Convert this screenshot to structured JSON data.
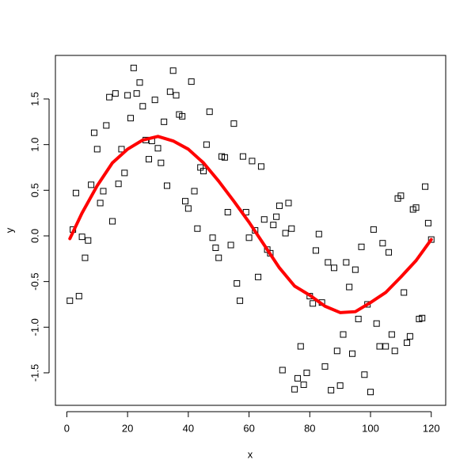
{
  "chart_data": {
    "type": "scatter",
    "xlabel": "x",
    "ylabel": "y",
    "xlim": [
      -3.76,
      124.76
    ],
    "ylim": [
      -1.856,
      1.977
    ],
    "xticks": [
      0,
      20,
      40,
      60,
      80,
      100,
      120
    ],
    "yticks": [
      -1.5,
      {
        "value": -1,
        "label": "-1.0"
      },
      -0.5,
      {
        "value": 0,
        "label": "0.0"
      },
      0.5,
      {
        "value": 1,
        "label": "1.0"
      },
      1.5
    ],
    "grid": false,
    "series": [
      {
        "type": "scatter",
        "color": "#000000",
        "x": [
          1,
          2,
          3,
          4,
          5,
          6,
          7,
          8,
          9,
          10,
          11,
          12,
          13,
          14,
          15,
          16,
          17,
          18,
          19,
          20,
          21,
          22,
          23,
          24,
          25,
          26,
          27,
          28,
          29,
          30,
          31,
          32,
          33,
          34,
          35,
          36,
          37,
          38,
          39,
          40,
          41,
          42,
          43,
          44,
          45,
          46,
          47,
          48,
          49,
          50,
          51,
          52,
          53,
          54,
          55,
          56,
          57,
          58,
          59,
          60,
          61,
          62,
          63,
          64,
          65,
          66,
          67,
          68,
          69,
          70,
          71,
          72,
          73,
          74,
          75,
          76,
          77,
          78,
          79,
          80,
          81,
          82,
          83,
          84,
          85,
          86,
          87,
          88,
          89,
          90,
          91,
          92,
          93,
          94,
          95,
          96,
          97,
          98,
          99,
          100,
          101,
          102,
          103,
          104,
          105,
          106,
          107,
          108,
          109,
          110,
          111,
          112,
          113,
          114,
          115,
          116,
          117,
          118,
          119,
          120
        ],
        "values": [
          -0.71,
          0.07,
          0.47,
          -0.66,
          -0.01,
          -0.24,
          -0.05,
          0.56,
          1.13,
          0.95,
          0.36,
          0.49,
          1.21,
          1.52,
          0.16,
          1.56,
          0.57,
          0.95,
          0.69,
          1.54,
          1.29,
          1.84,
          1.56,
          1.68,
          1.42,
          1.05,
          0.84,
          1.04,
          1.49,
          0.96,
          0.8,
          1.25,
          0.55,
          1.58,
          1.81,
          1.54,
          1.33,
          1.31,
          0.38,
          0.3,
          1.69,
          0.49,
          0.08,
          0.75,
          0.71,
          1.0,
          1.36,
          -0.02,
          -0.13,
          -0.24,
          0.87,
          0.86,
          0.26,
          -0.1,
          1.23,
          -0.52,
          -0.71,
          0.87,
          0.26,
          -0.02,
          0.82,
          0.06,
          -0.45,
          0.76,
          0.18,
          -0.15,
          -0.19,
          0.12,
          0.21,
          0.33,
          -1.47,
          0.03,
          0.36,
          0.08,
          -1.68,
          -1.56,
          -1.21,
          -1.63,
          -1.5,
          -0.66,
          -0.74,
          -0.16,
          0.02,
          -0.73,
          -1.43,
          -0.29,
          -1.69,
          -0.35,
          -1.26,
          -1.64,
          -1.08,
          -0.29,
          -0.56,
          -1.29,
          -0.37,
          -0.91,
          -0.12,
          -1.52,
          -0.75,
          -1.71,
          0.07,
          -0.96,
          -1.21,
          -0.08,
          -1.21,
          -0.18,
          -1.08,
          -1.26,
          0.41,
          0.44,
          -0.62,
          -1.17,
          -1.1,
          0.29,
          0.31,
          -0.91,
          -0.9,
          0.54,
          0.14,
          -0.04
        ]
      },
      {
        "type": "line",
        "color": "#ff0000",
        "x": [
          1,
          5,
          10,
          15,
          20,
          25,
          30,
          35,
          40,
          45,
          50,
          55,
          60,
          65,
          70,
          75,
          80,
          85,
          90,
          95,
          100,
          105,
          110,
          115,
          120
        ],
        "values": [
          -0.03,
          0.25,
          0.55,
          0.8,
          0.95,
          1.05,
          1.09,
          1.04,
          0.95,
          0.8,
          0.6,
          0.38,
          0.15,
          -0.1,
          -0.35,
          -0.55,
          -0.65,
          -0.77,
          -0.84,
          -0.83,
          -0.73,
          -0.62,
          -0.45,
          -0.27,
          -0.04
        ]
      }
    ]
  }
}
